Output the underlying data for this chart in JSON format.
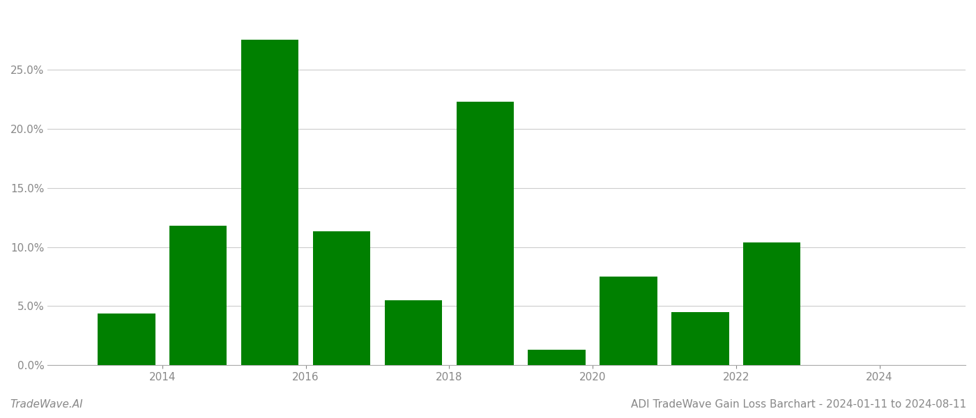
{
  "years": [
    2013,
    2014,
    2015,
    2016,
    2017,
    2018,
    2019,
    2020,
    2021,
    2022,
    2023
  ],
  "values": [
    0.044,
    0.118,
    0.275,
    0.113,
    0.055,
    0.223,
    0.013,
    0.075,
    0.045,
    0.104,
    0.0
  ],
  "bar_color": "#008000",
  "background_color": "#ffffff",
  "grid_color": "#cccccc",
  "title": "ADI TradeWave Gain Loss Barchart - 2024-01-11 to 2024-08-11",
  "watermark": "TradeWave.AI",
  "ylim": [
    0,
    0.3
  ],
  "yticks": [
    0.0,
    0.05,
    0.1,
    0.15,
    0.2,
    0.25
  ],
  "xtick_labels": [
    "2014",
    "2016",
    "2018",
    "2020",
    "2022",
    "2024"
  ],
  "xtick_positions": [
    2014,
    2016,
    2018,
    2020,
    2022,
    2024
  ],
  "bar_width": 0.8,
  "title_fontsize": 11,
  "tick_fontsize": 11,
  "watermark_fontsize": 11,
  "axis_color": "#aaaaaa",
  "text_color": "#888888",
  "xlim_left": 2012.4,
  "xlim_right": 2025.2
}
